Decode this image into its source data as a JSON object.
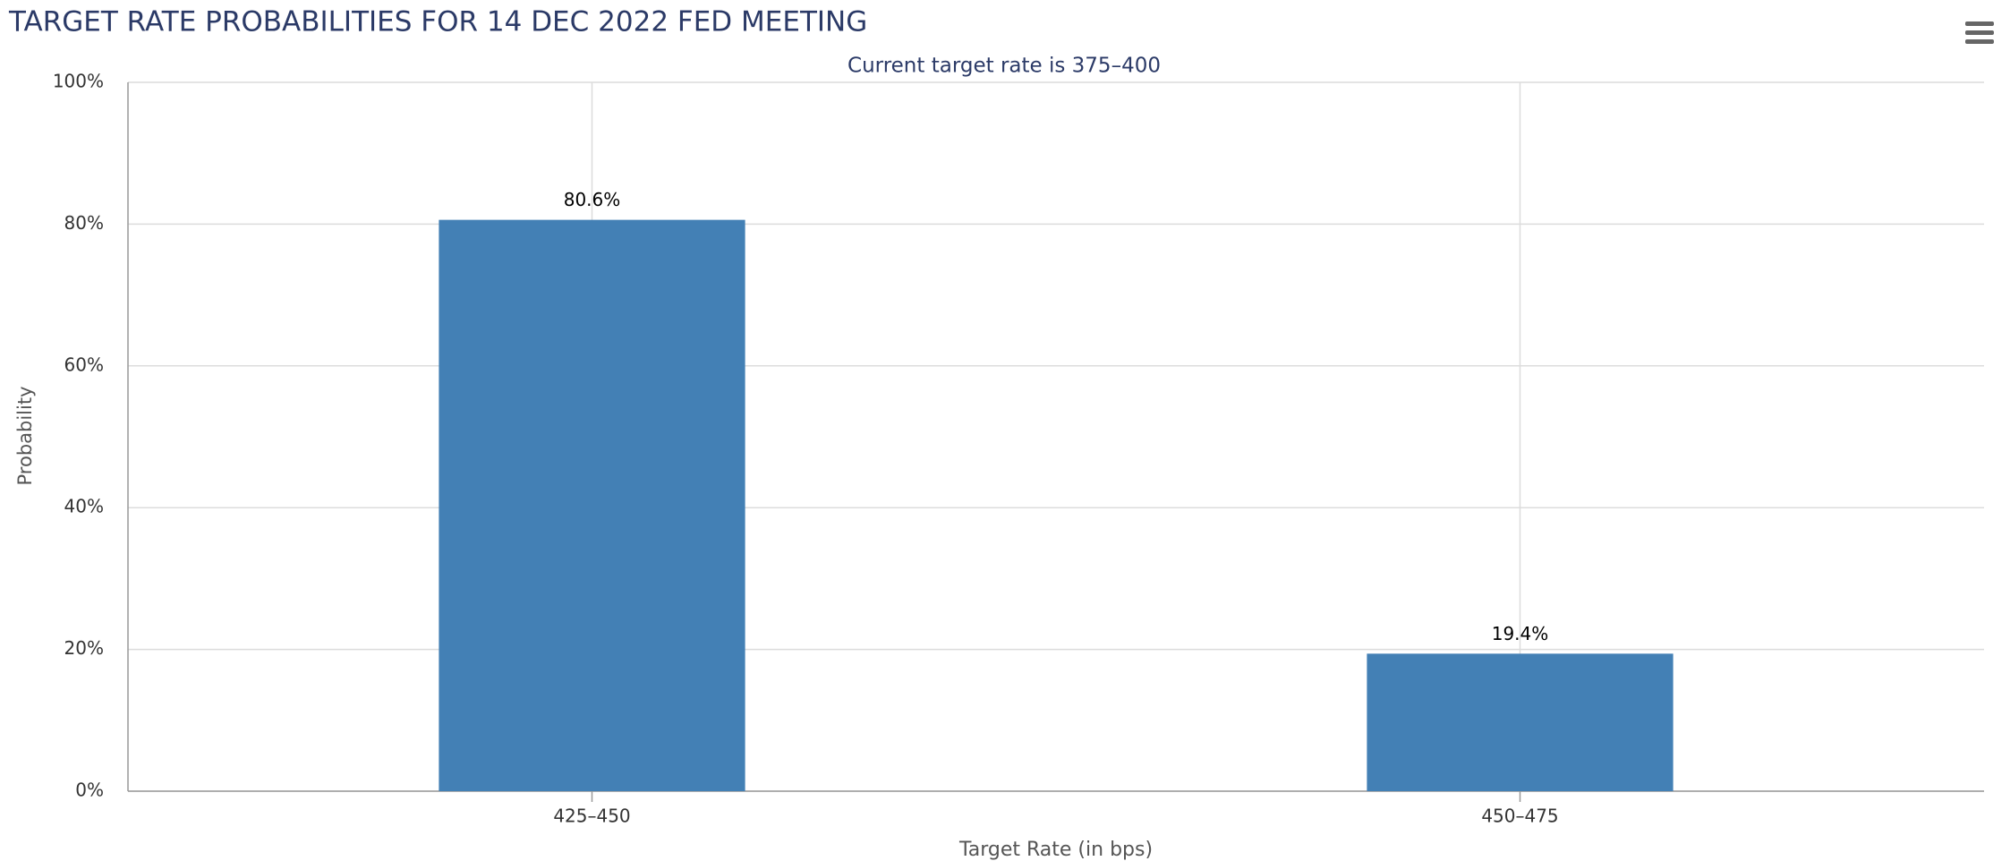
{
  "chart_data": {
    "type": "bar",
    "title": "TARGET RATE PROBABILITIES FOR 14 DEC 2022 FED MEETING",
    "subtitle": "Current target rate is 375–400",
    "x_label": "Target Rate (in bps)",
    "y_label": "Probability",
    "categories": [
      "425–450",
      "450–475"
    ],
    "values": [
      80.6,
      19.4
    ],
    "value_labels": [
      "80.6%",
      "19.4%"
    ],
    "color": "#4380b5",
    "ylim": [
      0,
      100
    ],
    "yticks": [
      {
        "value": 0,
        "label": "0%"
      },
      {
        "value": 20,
        "label": "20%"
      },
      {
        "value": 40,
        "label": "40%"
      },
      {
        "value": 60,
        "label": "60%"
      },
      {
        "value": 80,
        "label": "80%"
      },
      {
        "value": 100,
        "label": "100%"
      }
    ],
    "grid": true
  }
}
